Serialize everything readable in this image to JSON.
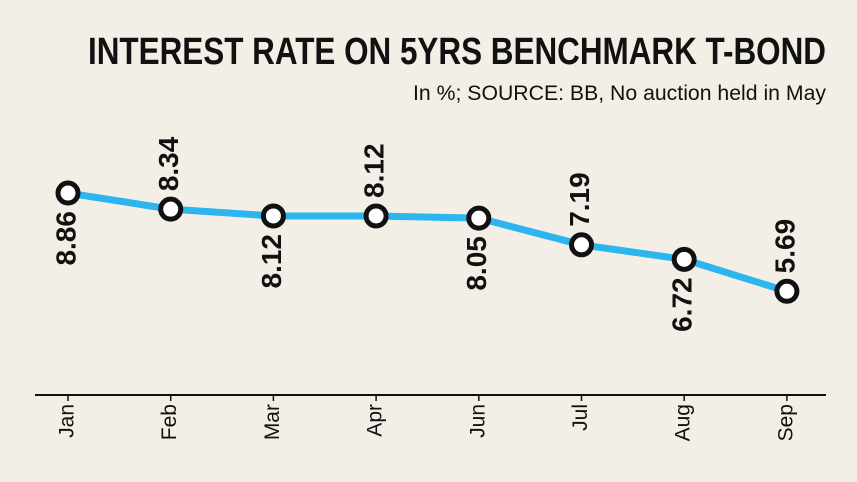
{
  "chart_data": {
    "type": "line",
    "title": "INTEREST RATE ON 5YRS BENCHMARK T-BOND",
    "subtitle": "In %; SOURCE: BB, No auction held in May",
    "categories": [
      "Jan",
      "Feb",
      "Mar",
      "Apr",
      "Jun",
      "Jul",
      "Aug",
      "Sep"
    ],
    "values": [
      8.86,
      8.34,
      8.12,
      8.12,
      8.05,
      7.19,
      6.72,
      5.69
    ],
    "color": "#2cb5ee"
  }
}
